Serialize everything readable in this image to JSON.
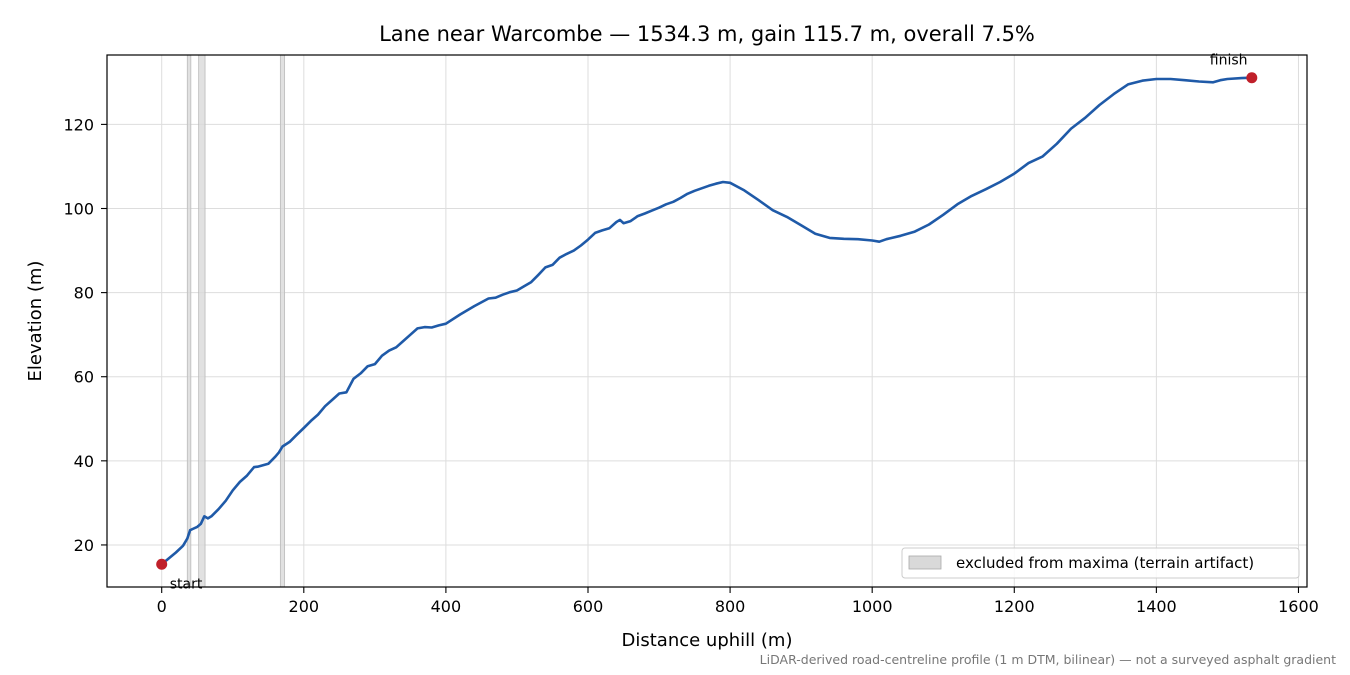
{
  "colors": {
    "line": "#1f5aa8",
    "marker": "#c0202a",
    "excluded_fill": "#d9d9d9",
    "grid": "#dddddd",
    "note": "#777777"
  },
  "chart_data": {
    "type": "line",
    "title": "Lane near Warcombe — 1534.3 m, gain 115.7 m, overall 7.5%",
    "xlabel": "Distance uphill (m)",
    "ylabel": "Elevation (m)",
    "xlim": [
      -77,
      1612
    ],
    "ylim": [
      10,
      136.5
    ],
    "grid": true,
    "legend_placement": "lower-right",
    "xticks": [
      0,
      200,
      400,
      600,
      800,
      1000,
      1200,
      1400,
      1600
    ],
    "xtick_labels": [
      "0",
      "200",
      "400",
      "600",
      "800",
      "1000",
      "1200",
      "1400",
      "1600"
    ],
    "yticks": [
      20,
      40,
      60,
      80,
      100,
      120
    ],
    "ytick_labels": [
      "20",
      "40",
      "60",
      "80",
      "100",
      "120"
    ],
    "legend": {
      "excluded_label": "excluded from maxima (terrain artifact)"
    },
    "excluded_regions": [
      [
        36,
        41
      ],
      [
        52,
        61
      ],
      [
        167,
        173
      ]
    ],
    "series": [
      {
        "x": [
          0,
          10,
          20,
          30,
          36,
          40,
          45,
          50,
          55,
          60,
          65,
          70,
          80,
          90,
          100,
          110,
          120,
          130,
          135,
          150,
          160,
          165,
          170,
          180,
          190,
          200,
          210,
          220,
          230,
          240,
          250,
          260,
          270,
          280,
          290,
          300,
          310,
          320,
          330,
          340,
          350,
          360,
          370,
          380,
          390,
          400,
          420,
          440,
          460,
          470,
          480,
          490,
          500,
          510,
          520,
          530,
          540,
          550,
          560,
          570,
          580,
          590,
          600,
          610,
          620,
          630,
          640,
          645,
          650,
          660,
          670,
          680,
          690,
          700,
          710,
          720,
          730,
          740,
          750,
          760,
          770,
          780,
          790,
          800,
          820,
          840,
          860,
          880,
          900,
          920,
          940,
          960,
          980,
          1000,
          1010,
          1020,
          1040,
          1060,
          1080,
          1100,
          1120,
          1140,
          1160,
          1180,
          1200,
          1220,
          1240,
          1260,
          1280,
          1300,
          1320,
          1340,
          1360,
          1380,
          1400,
          1420,
          1440,
          1460,
          1480,
          1490,
          1500,
          1520,
          1534.3
        ],
        "y": [
          15.4,
          16.8,
          18.2,
          19.8,
          21.5,
          23.5,
          23.9,
          24.3,
          25.0,
          26.8,
          26.3,
          26.8,
          28.5,
          30.5,
          33.0,
          35.0,
          36.5,
          38.5,
          38.6,
          39.3,
          41.0,
          42.0,
          43.4,
          44.5,
          46.2,
          47.8,
          49.5,
          51.0,
          53.0,
          54.5,
          56.0,
          56.3,
          59.5,
          60.8,
          62.5,
          63.0,
          65.0,
          66.2,
          67.0,
          68.5,
          70.0,
          71.5,
          71.8,
          71.7,
          72.2,
          72.6,
          74.8,
          76.8,
          78.6,
          78.8,
          79.5,
          80.1,
          80.5,
          81.5,
          82.5,
          84.2,
          86.0,
          86.6,
          88.3,
          89.2,
          90.0,
          91.2,
          92.6,
          94.2,
          94.8,
          95.3,
          96.8,
          97.3,
          96.5,
          97.0,
          98.2,
          98.8,
          99.5,
          100.2,
          101.0,
          101.6,
          102.5,
          103.5,
          104.2,
          104.8,
          105.4,
          105.9,
          106.3,
          106.1,
          104.3,
          102.0,
          99.6,
          98.0,
          96.0,
          94.0,
          93.0,
          92.8,
          92.7,
          92.4,
          92.1,
          92.7,
          93.5,
          94.5,
          96.2,
          98.5,
          101.0,
          103.0,
          104.6,
          106.3,
          108.3,
          110.8,
          112.4,
          115.4,
          119.0,
          121.6,
          124.6,
          127.2,
          129.5,
          130.4,
          130.8,
          130.8,
          130.5,
          130.2,
          130.0,
          130.5,
          130.8,
          131.0,
          131.1
        ]
      }
    ],
    "annotations": [
      {
        "label": "start",
        "x": 0,
        "y": 15.4
      },
      {
        "label": "finish",
        "x": 1534.3,
        "y": 131.1
      }
    ],
    "footnote": "LiDAR-derived road-centreline profile (1 m DTM, bilinear) — not a surveyed asphalt gradient"
  }
}
